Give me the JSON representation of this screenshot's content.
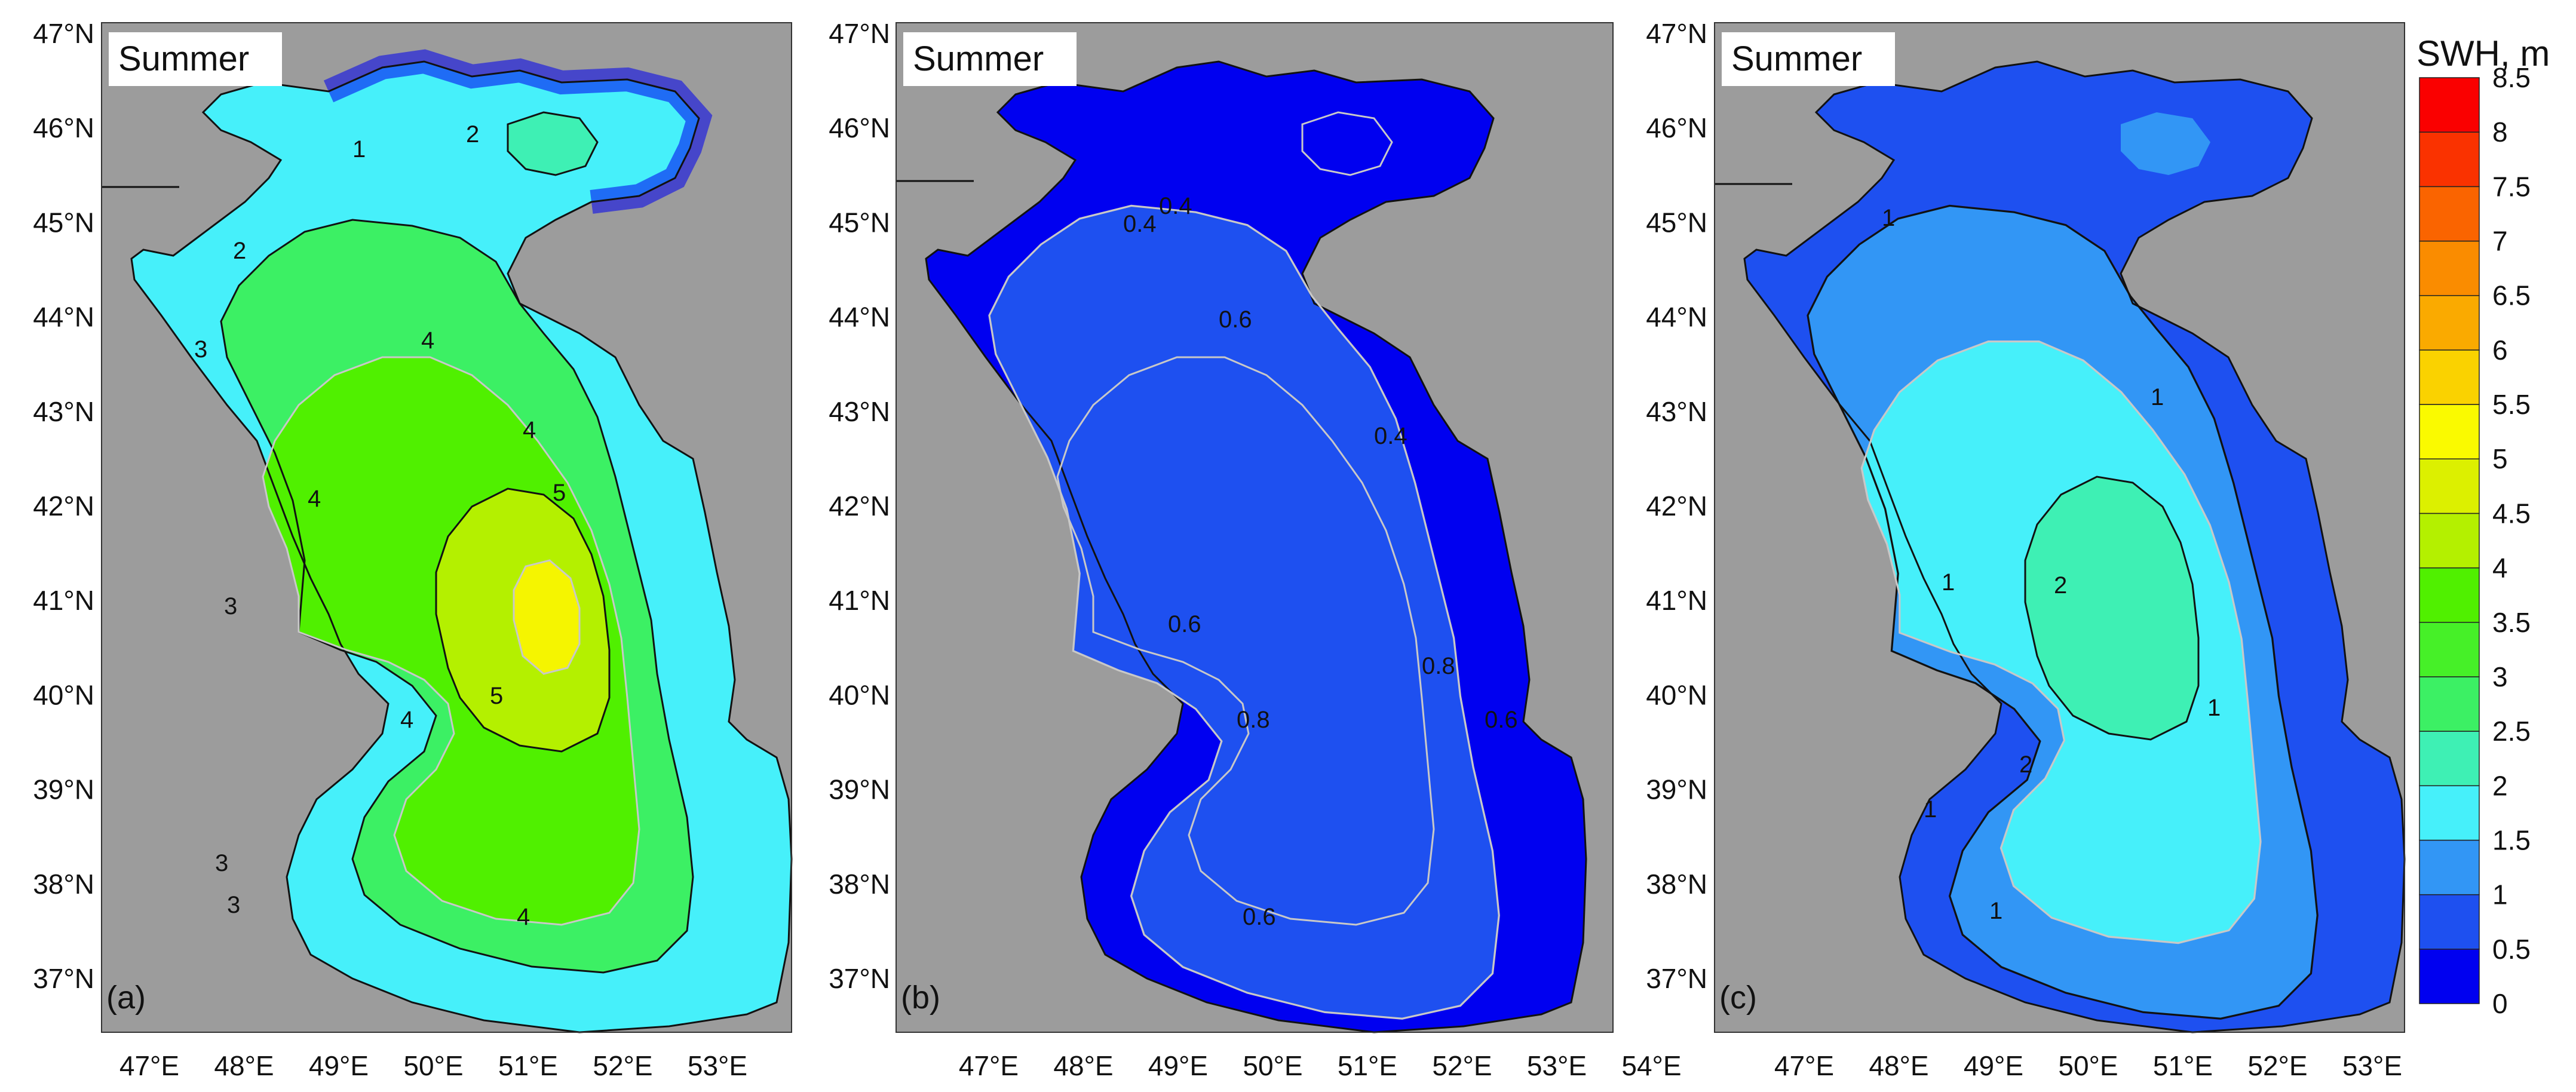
{
  "panels": [
    {
      "id": "a",
      "season_label": "Summer",
      "panel_tag": "(a)",
      "contour_labels": [
        "1",
        "2",
        "2",
        "3",
        "3",
        "3",
        "3",
        "4",
        "4",
        "4",
        "4",
        "4",
        "5",
        "5"
      ]
    },
    {
      "id": "b",
      "season_label": "Summer",
      "panel_tag": "(b)",
      "contour_labels": [
        "0.4",
        "0.6",
        "0.6",
        "0.6",
        "0.6",
        "0.8",
        "0.8",
        "0.4",
        "0.4"
      ]
    },
    {
      "id": "c",
      "season_label": "Summer",
      "panel_tag": "(c)",
      "contour_labels": [
        "1",
        "1",
        "1",
        "1",
        "1",
        "1",
        "2",
        "2"
      ]
    }
  ],
  "lat_ticks": [
    "47°N",
    "46°N",
    "45°N",
    "44°N",
    "43°N",
    "42°N",
    "41°N",
    "40°N",
    "39°N",
    "38°N",
    "37°N"
  ],
  "lon_ticks_ac": [
    "47°E",
    "48°E",
    "49°E",
    "50°E",
    "51°E",
    "52°E",
    "53°E"
  ],
  "lon_ticks_b": [
    "47°E",
    "48°E",
    "49°E",
    "50°E",
    "51°E",
    "52°E",
    "53°E",
    "54°E"
  ],
  "colorbar": {
    "title": "SWH, m",
    "labels": [
      "0",
      "0.5",
      "1",
      "1.5",
      "2",
      "2.5",
      "3",
      "3.5",
      "4",
      "4.5",
      "5",
      "5.5",
      "6",
      "6.5",
      "7",
      "7.5",
      "8",
      "8.5"
    ],
    "colors": [
      "#0000f0",
      "#1e50f0",
      "#3296f5",
      "#46f0fa",
      "#3ef0b4",
      "#3cf064",
      "#46f028",
      "#50f000",
      "#b4f000",
      "#dcf000",
      "#fafa00",
      "#fad200",
      "#faaa00",
      "#fa8c00",
      "#fa6400",
      "#fa3200",
      "#fa0000"
    ]
  },
  "colors": {
    "land": "#9c9c9c",
    "sea_background": "#ffffff",
    "contour_line": "#111111",
    "shading_line": "#c8c8c8"
  }
}
